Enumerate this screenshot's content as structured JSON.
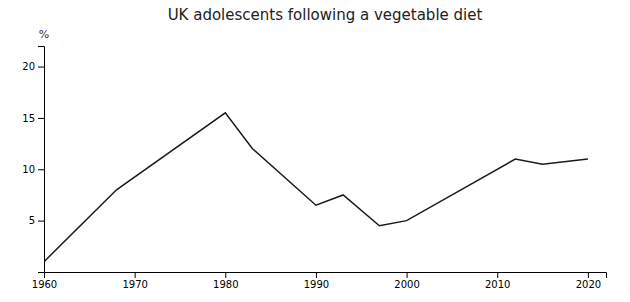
{
  "chart_data": {
    "type": "line",
    "title": "UK adolescents following a vegetable diet",
    "ylabel": "%",
    "x": [
      1960,
      1968,
      1980,
      1983,
      1990,
      1993,
      1997,
      2000,
      2012,
      2015,
      2020
    ],
    "values": [
      1,
      8,
      15.5,
      12,
      6.5,
      7.5,
      4.5,
      5.0,
      11.0,
      10.5,
      11.0
    ],
    "color": "#1a1a1a",
    "xlim": [
      1960,
      2022
    ],
    "ylim": [
      0,
      22
    ],
    "xticks": [
      1960,
      1970,
      1980,
      1990,
      2000,
      2010,
      2020
    ],
    "yticks": [
      5,
      10,
      15,
      20
    ],
    "grid": false
  }
}
